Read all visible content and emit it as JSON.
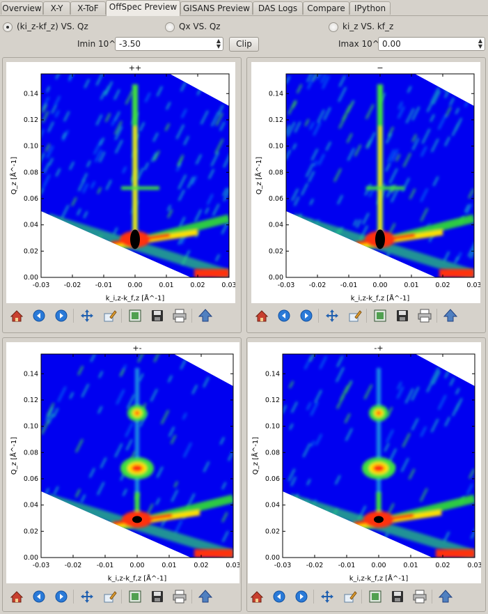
{
  "tabs": [
    {
      "label": "Overview",
      "active": false
    },
    {
      "label": "X-Y",
      "active": false
    },
    {
      "label": "X-ToF",
      "active": false
    },
    {
      "label": "OffSpec Preview",
      "active": true
    },
    {
      "label": "GISANS Preview",
      "active": false
    },
    {
      "label": "DAS Logs",
      "active": false
    },
    {
      "label": "Compare",
      "active": false
    },
    {
      "label": "IPython",
      "active": false
    }
  ],
  "view_modes": [
    {
      "label": "(ki_z-kf_z) VS. Qz",
      "selected": true
    },
    {
      "label": "Qx VS. Qz",
      "selected": false
    },
    {
      "label": "ki_z VS. kf_z",
      "selected": false
    }
  ],
  "controls": {
    "imin_label": "Imin 10^",
    "imin_value": "-3.50",
    "clip_label": "Clip",
    "imax_label": "Imax 10^",
    "imax_value": "0.00"
  },
  "toolbar_icons": [
    "home-icon",
    "back-icon",
    "forward-icon",
    "pan-icon",
    "edit-icon",
    "subplot-icon",
    "save-icon",
    "print-icon",
    "up-arrow-icon"
  ],
  "colors": {
    "map_background": "#0000f0",
    "axes_bg": "#ffffff"
  },
  "chart_data": [
    {
      "type": "heatmap",
      "title": "++",
      "xlabel": "k_i,z-k_f,z [Å^-1]",
      "ylabel": "Q_z [Å^-1]",
      "xlim": [
        -0.03,
        0.03
      ],
      "ylim": [
        0,
        0.155
      ],
      "xticks": [
        "-0.03",
        "-0.02",
        "-0.01",
        "0.00",
        "0.01",
        "0.02",
        "0.03"
      ],
      "yticks": [
        "0.00",
        "0.02",
        "0.04",
        "0.06",
        "0.08",
        "0.10",
        "0.12",
        "0.14"
      ],
      "features": [
        {
          "x": 0.0,
          "y": 0.029,
          "kind": "specular-max"
        },
        {
          "x": 0.0,
          "y": 0.068,
          "kind": "ridge"
        },
        {
          "x": 0.0,
          "y": 0.11,
          "kind": "ridge"
        }
      ]
    },
    {
      "type": "heatmap",
      "title": "−",
      "xlabel": "k_i,z-k_f,z [Å^-1]",
      "ylabel": "Q_z [Å^-1]",
      "xlim": [
        -0.03,
        0.03
      ],
      "ylim": [
        0,
        0.155
      ],
      "xticks": [
        "-0.03",
        "-0.02",
        "-0.01",
        "0.00",
        "0.01",
        "0.02",
        "0.03"
      ],
      "yticks": [
        "0.00",
        "0.02",
        "0.04",
        "0.06",
        "0.08",
        "0.10",
        "0.12",
        "0.14"
      ],
      "features": [
        {
          "x": 0.0,
          "y": 0.029,
          "kind": "specular-max"
        },
        {
          "x": 0.0,
          "y": 0.068,
          "kind": "ridge"
        }
      ]
    },
    {
      "type": "heatmap",
      "title": "+-",
      "xlabel": "k_i,z-k_f,z [Å^-1]",
      "ylabel": "Q_z [Å^-1]",
      "xlim": [
        -0.03,
        0.03
      ],
      "ylim": [
        0,
        0.155
      ],
      "xticks": [
        "-0.03",
        "-0.02",
        "-0.01",
        "0.00",
        "0.01",
        "0.02",
        "0.03"
      ],
      "yticks": [
        "0.00",
        "0.02",
        "0.04",
        "0.06",
        "0.08",
        "0.10",
        "0.12",
        "0.14"
      ],
      "features": [
        {
          "x": 0.0,
          "y": 0.029,
          "kind": "specular-max"
        },
        {
          "x": 0.0,
          "y": 0.068,
          "kind": "peak"
        },
        {
          "x": 0.0,
          "y": 0.11,
          "kind": "peak"
        }
      ]
    },
    {
      "type": "heatmap",
      "title": "-+",
      "xlabel": "k_i,z-k_f,z [Å^-1]",
      "ylabel": "Q_z [Å^-1]",
      "xlim": [
        -0.03,
        0.03
      ],
      "ylim": [
        0,
        0.155
      ],
      "xticks": [
        "-0.03",
        "-0.02",
        "-0.01",
        "0.00",
        "0.01",
        "0.02",
        "0.03"
      ],
      "yticks": [
        "0.00",
        "0.02",
        "0.04",
        "0.06",
        "0.08",
        "0.10",
        "0.12",
        "0.14"
      ],
      "features": [
        {
          "x": 0.0,
          "y": 0.029,
          "kind": "specular-max"
        },
        {
          "x": 0.0,
          "y": 0.068,
          "kind": "peak"
        },
        {
          "x": 0.0,
          "y": 0.11,
          "kind": "peak"
        }
      ]
    }
  ]
}
